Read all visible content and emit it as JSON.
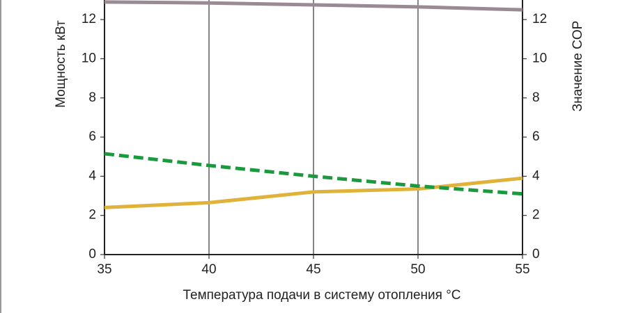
{
  "chart_data": {
    "type": "line",
    "x_label": "Температура подачи в систему отопления °C",
    "y_label": "Мощность кВт",
    "y2_label": "Значение COP",
    "x": [
      35,
      40,
      45,
      50,
      55
    ],
    "xlim": [
      35,
      55
    ],
    "xticks": [
      35,
      40,
      45,
      50,
      55
    ],
    "ylim": [
      0,
      13
    ],
    "yticks": [
      0,
      2,
      4,
      6,
      8,
      10,
      12
    ],
    "y2lim": [
      0,
      13
    ],
    "y2ticks": [
      0,
      2,
      4,
      6,
      8,
      10,
      12
    ],
    "grid": "x",
    "series": [
      {
        "color": "#9a8a93",
        "values": [
          12.9,
          12.85,
          12.75,
          12.65,
          12.5
        ]
      },
      {
        "color": "#e0b23a",
        "values": [
          2.4,
          2.65,
          3.2,
          3.35,
          3.9
        ]
      },
      {
        "color": "#1a9a3c",
        "values": [
          5.15,
          4.55,
          4.0,
          3.5,
          3.1
        ],
        "axis": "y2",
        "dashed": true
      }
    ]
  }
}
